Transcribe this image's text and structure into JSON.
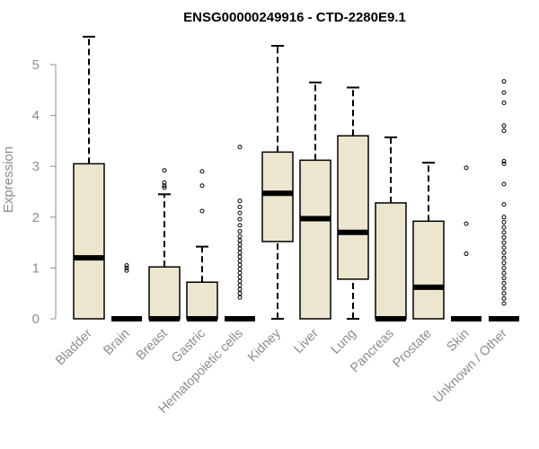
{
  "chart_data": {
    "type": "box",
    "title": "ENSG00000249916 - CTD-2280E9.1",
    "xlabel": "",
    "ylabel": "Expression",
    "ylim": [
      0,
      5.6
    ],
    "yticks": [
      0,
      1,
      2,
      3,
      4,
      5
    ],
    "grid": false,
    "legend": "none",
    "colors": {
      "box_fill": "#ede6cf",
      "box_stroke": "#000000",
      "median": "#000000",
      "axis": "#8c8c8c",
      "text_muted": "#8c8c8c"
    },
    "categories": [
      "Bladder",
      "Brain",
      "Breast",
      "Gastric",
      "Hematopoietic cells",
      "Kidney",
      "Liver",
      "Lung",
      "Pancreas",
      "Prostate",
      "Skin",
      "Unknown / Other"
    ],
    "boxes": [
      {
        "category": "Bladder",
        "min": 0,
        "q1": 0,
        "median": 1.2,
        "q3": 3.05,
        "max": 5.55,
        "outliers": []
      },
      {
        "category": "Brain",
        "min": 0,
        "q1": 0,
        "median": 0,
        "q3": 0,
        "max": 0,
        "outliers": [
          0.95,
          1.0,
          1.05
        ]
      },
      {
        "category": "Breast",
        "min": 0,
        "q1": 0,
        "median": 0,
        "q3": 1.02,
        "max": 2.45,
        "outliers": [
          2.58,
          2.62,
          2.68,
          2.92
        ]
      },
      {
        "category": "Gastric",
        "min": 0,
        "q1": 0,
        "median": 0,
        "q3": 0.72,
        "max": 1.42,
        "outliers": [
          2.12,
          2.62,
          2.9
        ]
      },
      {
        "category": "Hematopoietic cells",
        "min": 0,
        "q1": 0,
        "median": 0,
        "q3": 0,
        "max": 0,
        "outliers": [
          0.42,
          0.5,
          0.58,
          0.66,
          0.74,
          0.82,
          0.9,
          0.98,
          1.06,
          1.14,
          1.22,
          1.3,
          1.38,
          1.46,
          1.54,
          1.62,
          1.72,
          1.84,
          1.96,
          2.08,
          2.2,
          2.32,
          3.38
        ]
      },
      {
        "category": "Kidney",
        "min": 0,
        "q1": 1.52,
        "median": 2.47,
        "q3": 3.28,
        "max": 5.37,
        "outliers": []
      },
      {
        "category": "Liver",
        "min": 0,
        "q1": 0,
        "median": 1.97,
        "q3": 3.12,
        "max": 4.65,
        "outliers": []
      },
      {
        "category": "Lung",
        "min": 0,
        "q1": 0.78,
        "median": 1.7,
        "q3": 3.6,
        "max": 4.55,
        "outliers": []
      },
      {
        "category": "Pancreas",
        "min": 0,
        "q1": 0,
        "median": 0,
        "q3": 2.28,
        "max": 3.57,
        "outliers": []
      },
      {
        "category": "Prostate",
        "min": 0,
        "q1": 0,
        "median": 0.62,
        "q3": 1.92,
        "max": 3.07,
        "outliers": []
      },
      {
        "category": "Skin",
        "min": 0,
        "q1": 0,
        "median": 0,
        "q3": 0,
        "max": 0,
        "outliers": [
          1.28,
          1.87,
          2.97
        ]
      },
      {
        "category": "Unknown / Other",
        "min": 0,
        "q1": 0,
        "median": 0,
        "q3": 0,
        "max": 0,
        "outliers": [
          0.3,
          0.4,
          0.5,
          0.6,
          0.7,
          0.8,
          0.9,
          1.0,
          1.1,
          1.2,
          1.3,
          1.4,
          1.5,
          1.6,
          1.7,
          1.8,
          1.9,
          2.0,
          2.25,
          2.65,
          3.05,
          3.1,
          3.7,
          3.8,
          4.25,
          4.45,
          4.67
        ]
      }
    ]
  }
}
